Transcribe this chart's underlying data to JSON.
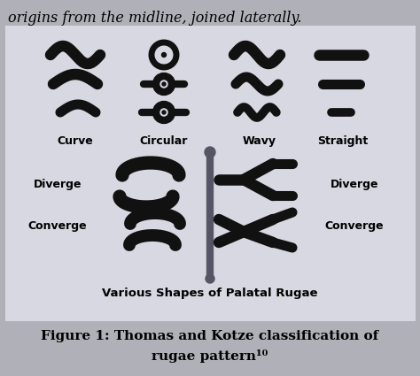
{
  "title_top": "origins from the midline, joined laterally.",
  "caption_bottom": "Figure 1: Thomas and Kotze classification of\nrugae pattern¹⁰",
  "inner_caption": "Various Shapes of Palatal Rugae",
  "box_bg": "#d0d0d8",
  "labels_row1": [
    "Curve",
    "Circular",
    "Wavy",
    "Straight"
  ],
  "labels_row2_left": [
    "Diverge",
    "Converge"
  ],
  "labels_row2_right": [
    "Diverge",
    "Converge"
  ],
  "shape_color": "#111111",
  "fig_bg": "#c8c8d0"
}
